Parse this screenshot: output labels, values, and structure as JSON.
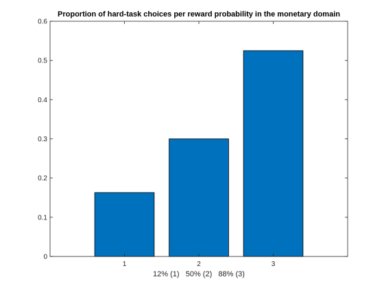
{
  "chart_data": {
    "type": "bar",
    "title": "Proportion of hard-task choices per reward probability in the monetary domain",
    "xlabel": "12% (1)   50% (2)   88% (3)",
    "ylabel": "",
    "categories": [
      "1",
      "2",
      "3"
    ],
    "values": [
      0.163,
      0.3,
      0.525
    ],
    "xlim": [
      0,
      4
    ],
    "ylim": [
      0,
      0.6
    ],
    "yticks": [
      0,
      0.1,
      0.2,
      0.3,
      0.4,
      0.5,
      0.6
    ],
    "ytick_labels": [
      "0",
      "0.1",
      "0.2",
      "0.3",
      "0.4",
      "0.5",
      "0.6"
    ],
    "grid": false,
    "legend": "none",
    "bar_color": "#0072BD"
  }
}
